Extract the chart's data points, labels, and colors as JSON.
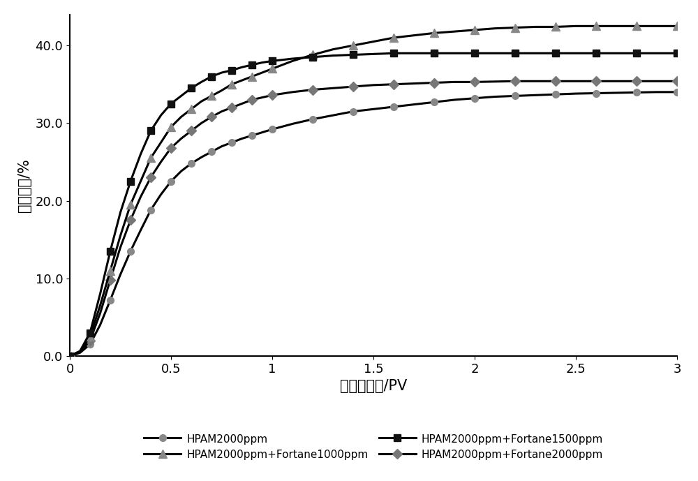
{
  "series": [
    {
      "name": "HPAM2000ppm",
      "x": [
        0,
        0.05,
        0.1,
        0.15,
        0.2,
        0.25,
        0.3,
        0.35,
        0.4,
        0.45,
        0.5,
        0.55,
        0.6,
        0.65,
        0.7,
        0.75,
        0.8,
        0.85,
        0.9,
        0.95,
        1.0,
        1.1,
        1.2,
        1.3,
        1.4,
        1.5,
        1.6,
        1.7,
        1.8,
        1.9,
        2.0,
        2.1,
        2.2,
        2.3,
        2.4,
        2.5,
        2.6,
        2.7,
        2.8,
        2.9,
        3.0
      ],
      "y": [
        0,
        0.4,
        1.5,
        4.0,
        7.2,
        10.5,
        13.5,
        16.2,
        18.8,
        20.8,
        22.5,
        23.8,
        24.8,
        25.6,
        26.3,
        27.0,
        27.5,
        28.0,
        28.4,
        28.8,
        29.2,
        29.9,
        30.5,
        31.0,
        31.5,
        31.8,
        32.1,
        32.4,
        32.7,
        33.0,
        33.2,
        33.4,
        33.5,
        33.6,
        33.7,
        33.8,
        33.85,
        33.9,
        33.95,
        34.0,
        34.0
      ],
      "line_color": "#000000",
      "marker_color": "#888888",
      "marker": "o",
      "markersize": 7,
      "label": "HPAM2000ppm",
      "linewidth": 2.2,
      "zorder": 2
    },
    {
      "name": "HPAM2000ppm+Fortane1000ppm",
      "x": [
        0,
        0.05,
        0.1,
        0.15,
        0.2,
        0.25,
        0.3,
        0.35,
        0.4,
        0.45,
        0.5,
        0.55,
        0.6,
        0.65,
        0.7,
        0.75,
        0.8,
        0.85,
        0.9,
        0.95,
        1.0,
        1.1,
        1.2,
        1.3,
        1.4,
        1.5,
        1.6,
        1.7,
        1.8,
        1.9,
        2.0,
        2.1,
        2.2,
        2.3,
        2.4,
        2.5,
        2.6,
        2.7,
        2.8,
        2.9,
        3.0
      ],
      "y": [
        0,
        0.6,
        2.5,
        6.5,
        11.0,
        15.5,
        19.5,
        22.5,
        25.5,
        27.5,
        29.5,
        30.8,
        31.8,
        32.8,
        33.5,
        34.2,
        35.0,
        35.5,
        36.0,
        36.5,
        37.0,
        38.0,
        38.8,
        39.5,
        40.0,
        40.5,
        41.0,
        41.3,
        41.6,
        41.8,
        42.0,
        42.2,
        42.3,
        42.4,
        42.4,
        42.5,
        42.5,
        42.5,
        42.5,
        42.5,
        42.5
      ],
      "line_color": "#000000",
      "marker_color": "#888888",
      "marker": "^",
      "markersize": 8,
      "label": "HPAM2000ppm+Fortane1000ppm",
      "linewidth": 2.2,
      "zorder": 4
    },
    {
      "name": "HPAM2000ppm+Fortane1500ppm",
      "x": [
        0,
        0.05,
        0.1,
        0.15,
        0.2,
        0.25,
        0.3,
        0.35,
        0.4,
        0.45,
        0.5,
        0.55,
        0.6,
        0.65,
        0.7,
        0.75,
        0.8,
        0.85,
        0.9,
        0.95,
        1.0,
        1.1,
        1.2,
        1.3,
        1.4,
        1.5,
        1.6,
        1.7,
        1.8,
        1.9,
        2.0,
        2.1,
        2.2,
        2.3,
        2.4,
        2.5,
        2.6,
        2.7,
        2.8,
        2.9,
        3.0
      ],
      "y": [
        0,
        0.6,
        3.0,
        8.0,
        13.5,
        18.5,
        22.5,
        26.0,
        29.0,
        31.0,
        32.5,
        33.5,
        34.5,
        35.3,
        36.0,
        36.5,
        36.8,
        37.2,
        37.5,
        37.8,
        38.0,
        38.3,
        38.5,
        38.7,
        38.8,
        38.9,
        39.0,
        39.0,
        39.0,
        39.0,
        39.0,
        39.0,
        39.0,
        39.0,
        39.0,
        39.0,
        39.0,
        39.0,
        39.0,
        39.0,
        39.0
      ],
      "line_color": "#000000",
      "marker_color": "#111111",
      "marker": "s",
      "markersize": 7,
      "label": "HPAM2000ppm+Fortane1500ppm",
      "linewidth": 2.2,
      "zorder": 5
    },
    {
      "name": "HPAM2000ppm+Fortane2000ppm",
      "x": [
        0,
        0.05,
        0.1,
        0.15,
        0.2,
        0.25,
        0.3,
        0.35,
        0.4,
        0.45,
        0.5,
        0.55,
        0.6,
        0.65,
        0.7,
        0.75,
        0.8,
        0.85,
        0.9,
        0.95,
        1.0,
        1.1,
        1.2,
        1.3,
        1.4,
        1.5,
        1.6,
        1.7,
        1.8,
        1.9,
        2.0,
        2.1,
        2.2,
        2.3,
        2.4,
        2.5,
        2.6,
        2.7,
        2.8,
        2.9,
        3.0
      ],
      "y": [
        0,
        0.5,
        2.0,
        5.5,
        9.8,
        14.0,
        17.5,
        20.5,
        23.0,
        25.0,
        26.8,
        28.0,
        29.0,
        30.0,
        30.8,
        31.5,
        32.0,
        32.5,
        33.0,
        33.3,
        33.6,
        34.0,
        34.3,
        34.5,
        34.7,
        34.9,
        35.0,
        35.1,
        35.2,
        35.3,
        35.3,
        35.35,
        35.4,
        35.4,
        35.4,
        35.4,
        35.4,
        35.4,
        35.4,
        35.4,
        35.4
      ],
      "line_color": "#000000",
      "marker_color": "#777777",
      "marker": "D",
      "markersize": 7,
      "label": "HPAM2000ppm+Fortane2000ppm",
      "linewidth": 2.2,
      "zorder": 3
    }
  ],
  "xlabel": "累计注入量/PV",
  "ylabel": "采出程度/%",
  "xlim": [
    0,
    3.0
  ],
  "ylim": [
    0,
    44
  ],
  "xticks": [
    0,
    0.5,
    1,
    1.5,
    2,
    2.5,
    3
  ],
  "yticks": [
    0.0,
    10.0,
    20.0,
    30.0,
    40.0
  ],
  "xlabel_fontsize": 15,
  "ylabel_fontsize": 15,
  "tick_fontsize": 13,
  "legend_fontsize": 11,
  "background_color": "#ffffff",
  "markevery": 2
}
